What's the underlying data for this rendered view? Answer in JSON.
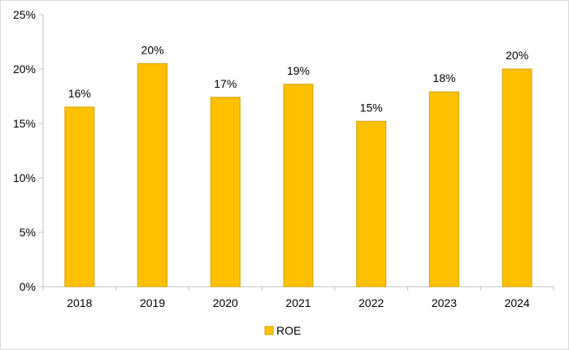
{
  "chart_data": {
    "type": "bar",
    "title": "",
    "xlabel": "",
    "ylabel": "",
    "categories": [
      "2018",
      "2019",
      "2020",
      "2021",
      "2022",
      "2023",
      "2024"
    ],
    "series": [
      {
        "name": "ROE",
        "values": [
          16.5,
          20.5,
          17.4,
          18.6,
          15.2,
          17.9,
          20.0
        ],
        "data_labels": [
          "16%",
          "20%",
          "17%",
          "19%",
          "15%",
          "18%",
          "20%"
        ],
        "color": "#FFC000",
        "border_color": "#D4A000"
      }
    ],
    "ylim": [
      0,
      25
    ],
    "yticks": [
      0,
      5,
      10,
      15,
      20,
      25
    ],
    "ytick_labels": [
      "0%",
      "5%",
      "10%",
      "15%",
      "20%",
      "25%"
    ],
    "grid": false,
    "legend_position": "bottom"
  }
}
